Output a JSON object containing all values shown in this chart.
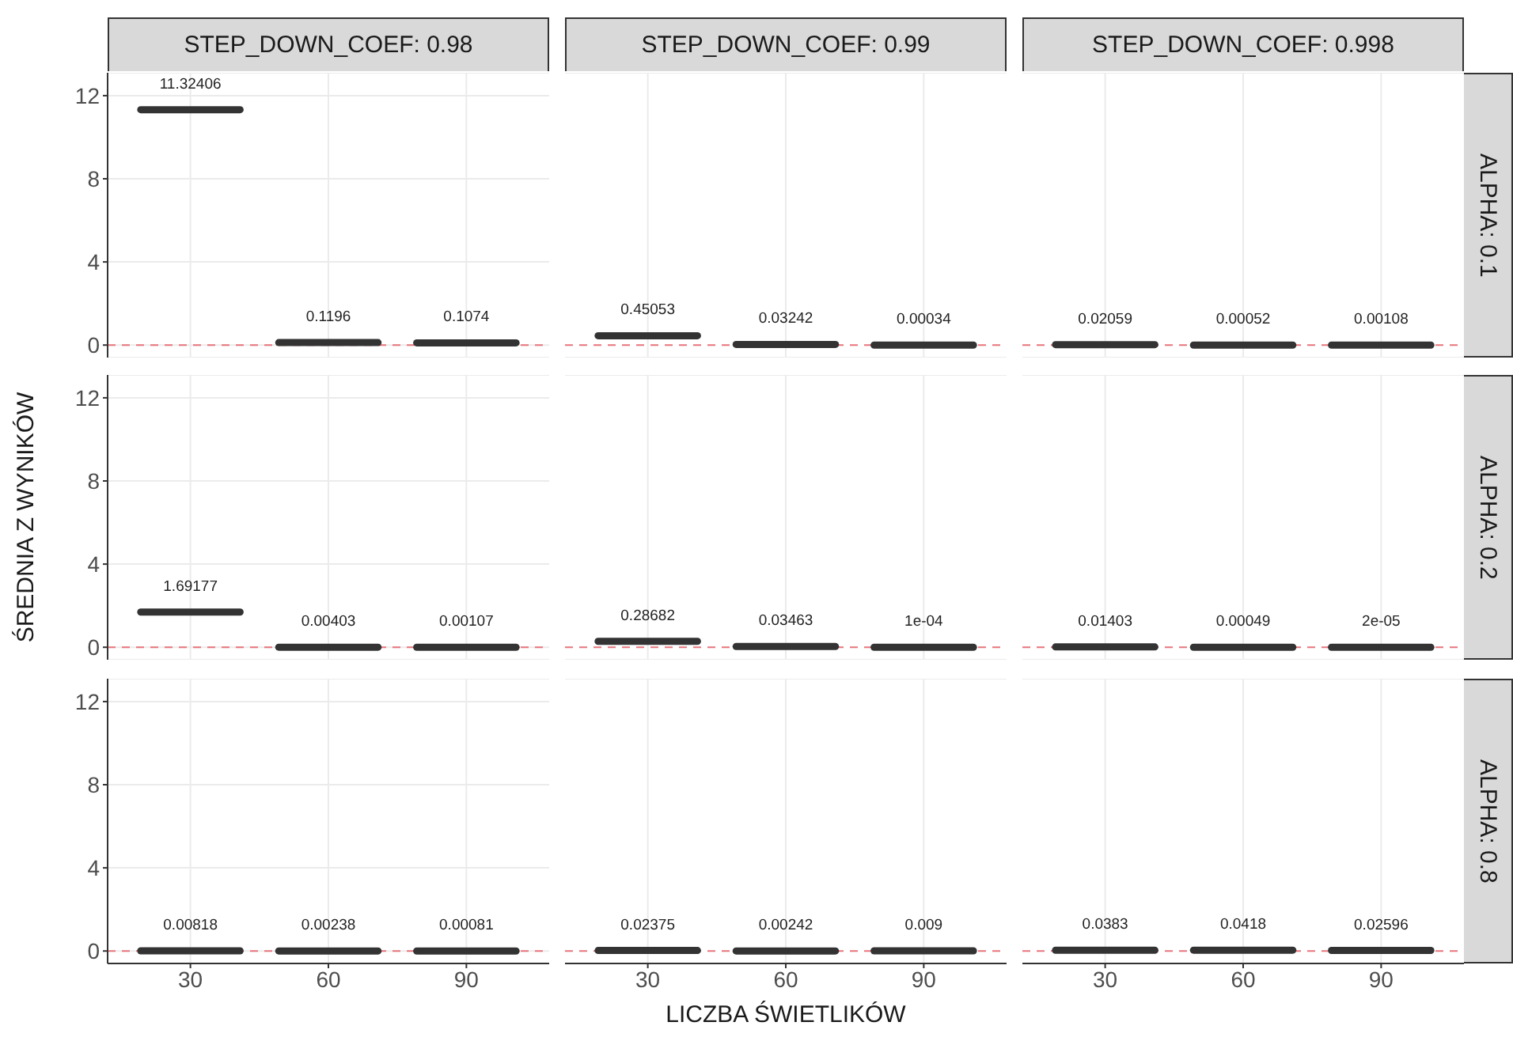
{
  "chart_data": [
    {
      "type": "box",
      "title": "STEP_DOWN_COEF: 0.98",
      "categories": [
        "30",
        "60",
        "90"
      ],
      "series": [
        {
          "color": "#333333",
          "boxes": [
            {
              "low": 11.32406,
              "q1": 11.32406,
              "median": 11.32406,
              "q3": 11.32406,
              "high": 11.32406
            },
            {
              "low": 0.1196,
              "q1": 0.1196,
              "median": 0.1196,
              "q3": 0.1196,
              "high": 0.1196
            },
            {
              "low": 0.1074,
              "q1": 0.1074,
              "median": 0.1074,
              "q3": 0.1074,
              "high": 0.1074
            }
          ],
          "value_labels": [
            "11.32406",
            "0.1196",
            "0.1074"
          ]
        }
      ],
      "ylim": [
        -0.6,
        13.1
      ],
      "yticks": [
        0,
        4,
        8,
        12
      ],
      "grid": true,
      "tick_labels": "y",
      "ref_lines": [
        {
          "axis": "y",
          "value": 0,
          "color": "#e8747c",
          "line_style": "dashed"
        }
      ]
    },
    {
      "type": "box",
      "title": "STEP_DOWN_COEF: 0.99",
      "categories": [
        "30",
        "60",
        "90"
      ],
      "series": [
        {
          "color": "#333333",
          "boxes": [
            {
              "low": 0.45053,
              "q1": 0.45053,
              "median": 0.45053,
              "q3": 0.45053,
              "high": 0.45053
            },
            {
              "low": 0.03242,
              "q1": 0.03242,
              "median": 0.03242,
              "q3": 0.03242,
              "high": 0.03242
            },
            {
              "low": 0.00034,
              "q1": 0.00034,
              "median": 0.00034,
              "q3": 0.00034,
              "high": 0.00034
            }
          ],
          "value_labels": [
            "0.45053",
            "0.03242",
            "0.00034"
          ]
        }
      ],
      "ylim": [
        -0.6,
        13.1
      ],
      "yticks": [
        0,
        4,
        8,
        12
      ],
      "grid": true,
      "tick_labels": false,
      "ref_lines": [
        {
          "axis": "y",
          "value": 0,
          "color": "#e8747c",
          "line_style": "dashed"
        }
      ]
    },
    {
      "type": "box",
      "title": "STEP_DOWN_COEF: 0.998",
      "y2label": "ALPHA: 0.1",
      "categories": [
        "30",
        "60",
        "90"
      ],
      "series": [
        {
          "color": "#333333",
          "boxes": [
            {
              "low": 0.02059,
              "q1": 0.02059,
              "median": 0.02059,
              "q3": 0.02059,
              "high": 0.02059
            },
            {
              "low": 0.00052,
              "q1": 0.00052,
              "median": 0.00052,
              "q3": 0.00052,
              "high": 0.00052
            },
            {
              "low": 0.00108,
              "q1": 0.00108,
              "median": 0.00108,
              "q3": 0.00108,
              "high": 0.00108
            }
          ],
          "value_labels": [
            "0.02059",
            "0.00052",
            "0.00108"
          ]
        }
      ],
      "ylim": [
        -0.6,
        13.1
      ],
      "yticks": [
        0,
        4,
        8,
        12
      ],
      "grid": true,
      "tick_labels": false,
      "ref_lines": [
        {
          "axis": "y",
          "value": 0,
          "color": "#e8747c",
          "line_style": "dashed"
        }
      ]
    },
    {
      "type": "box",
      "ylabel": "ŚREDNIA Z WYNIKÓW",
      "categories": [
        "30",
        "60",
        "90"
      ],
      "series": [
        {
          "color": "#333333",
          "boxes": [
            {
              "low": 1.69177,
              "q1": 1.69177,
              "median": 1.69177,
              "q3": 1.69177,
              "high": 1.69177
            },
            {
              "low": 0.00403,
              "q1": 0.00403,
              "median": 0.00403,
              "q3": 0.00403,
              "high": 0.00403
            },
            {
              "low": 0.00107,
              "q1": 0.00107,
              "median": 0.00107,
              "q3": 0.00107,
              "high": 0.00107
            }
          ],
          "value_labels": [
            "1.69177",
            "0.00403",
            "0.00107"
          ]
        }
      ],
      "ylim": [
        -0.6,
        13.1
      ],
      "yticks": [
        0,
        4,
        8,
        12
      ],
      "grid": true,
      "tick_labels": "y",
      "ref_lines": [
        {
          "axis": "y",
          "value": 0,
          "color": "#e8747c",
          "line_style": "dashed"
        }
      ]
    },
    {
      "type": "box",
      "categories": [
        "30",
        "60",
        "90"
      ],
      "series": [
        {
          "color": "#333333",
          "boxes": [
            {
              "low": 0.28682,
              "q1": 0.28682,
              "median": 0.28682,
              "q3": 0.28682,
              "high": 0.28682
            },
            {
              "low": 0.03463,
              "q1": 0.03463,
              "median": 0.03463,
              "q3": 0.03463,
              "high": 0.03463
            },
            {
              "low": 0.0001,
              "q1": 0.0001,
              "median": 0.0001,
              "q3": 0.0001,
              "high": 0.0001
            }
          ],
          "value_labels": [
            "0.28682",
            "0.03463",
            "1e-04"
          ]
        }
      ],
      "ylim": [
        -0.6,
        13.1
      ],
      "yticks": [
        0,
        4,
        8,
        12
      ],
      "grid": true,
      "tick_labels": false,
      "ref_lines": [
        {
          "axis": "y",
          "value": 0,
          "color": "#e8747c",
          "line_style": "dashed"
        }
      ]
    },
    {
      "type": "box",
      "y2label": "ALPHA: 0.2",
      "categories": [
        "30",
        "60",
        "90"
      ],
      "series": [
        {
          "color": "#333333",
          "boxes": [
            {
              "low": 0.01403,
              "q1": 0.01403,
              "median": 0.01403,
              "q3": 0.01403,
              "high": 0.01403
            },
            {
              "low": 0.00049,
              "q1": 0.00049,
              "median": 0.00049,
              "q3": 0.00049,
              "high": 0.00049
            },
            {
              "low": 2e-05,
              "q1": 2e-05,
              "median": 2e-05,
              "q3": 2e-05,
              "high": 2e-05
            }
          ],
          "value_labels": [
            "0.01403",
            "0.00049",
            "2e-05"
          ]
        }
      ],
      "ylim": [
        -0.6,
        13.1
      ],
      "yticks": [
        0,
        4,
        8,
        12
      ],
      "grid": true,
      "tick_labels": false,
      "ref_lines": [
        {
          "axis": "y",
          "value": 0,
          "color": "#e8747c",
          "line_style": "dashed"
        }
      ]
    },
    {
      "type": "box",
      "categories": [
        "30",
        "60",
        "90"
      ],
      "series": [
        {
          "color": "#333333",
          "boxes": [
            {
              "low": 0.00818,
              "q1": 0.00818,
              "median": 0.00818,
              "q3": 0.00818,
              "high": 0.00818
            },
            {
              "low": 0.00238,
              "q1": 0.00238,
              "median": 0.00238,
              "q3": 0.00238,
              "high": 0.00238
            },
            {
              "low": 0.00081,
              "q1": 0.00081,
              "median": 0.00081,
              "q3": 0.00081,
              "high": 0.00081
            }
          ],
          "value_labels": [
            "0.00818",
            "0.00238",
            "0.00081"
          ]
        }
      ],
      "ylim": [
        -0.6,
        13.1
      ],
      "yticks": [
        0,
        4,
        8,
        12
      ],
      "grid": true,
      "ref_lines": [
        {
          "axis": "y",
          "value": 0,
          "color": "#e8747c",
          "line_style": "dashed"
        }
      ]
    },
    {
      "type": "box",
      "xlabel": "LICZBA ŚWIETLIKÓW",
      "categories": [
        "30",
        "60",
        "90"
      ],
      "series": [
        {
          "color": "#333333",
          "boxes": [
            {
              "low": 0.02375,
              "q1": 0.02375,
              "median": 0.02375,
              "q3": 0.02375,
              "high": 0.02375
            },
            {
              "low": 0.00242,
              "q1": 0.00242,
              "median": 0.00242,
              "q3": 0.00242,
              "high": 0.00242
            },
            {
              "low": 0.009,
              "q1": 0.009,
              "median": 0.009,
              "q3": 0.009,
              "high": 0.009
            }
          ],
          "value_labels": [
            "0.02375",
            "0.00242",
            "0.009"
          ]
        }
      ],
      "ylim": [
        -0.6,
        13.1
      ],
      "yticks": [
        0,
        4,
        8,
        12
      ],
      "grid": true,
      "tick_labels": "x",
      "ref_lines": [
        {
          "axis": "y",
          "value": 0,
          "color": "#e8747c",
          "line_style": "dashed"
        }
      ]
    },
    {
      "type": "box",
      "y2label": "ALPHA: 0.8",
      "categories": [
        "30",
        "60",
        "90"
      ],
      "series": [
        {
          "color": "#333333",
          "boxes": [
            {
              "low": 0.0383,
              "q1": 0.0383,
              "median": 0.0383,
              "q3": 0.0383,
              "high": 0.0383
            },
            {
              "low": 0.0418,
              "q1": 0.0418,
              "median": 0.0418,
              "q3": 0.0418,
              "high": 0.0418
            },
            {
              "low": 0.02596,
              "q1": 0.02596,
              "median": 0.02596,
              "q3": 0.02596,
              "high": 0.02596
            }
          ],
          "value_labels": [
            "0.0383",
            "0.0418",
            "0.02596"
          ]
        }
      ],
      "ylim": [
        -0.6,
        13.1
      ],
      "yticks": [
        0,
        4,
        8,
        12
      ],
      "grid": true,
      "tick_labels": "x",
      "ref_lines": [
        {
          "axis": "y",
          "value": 0,
          "color": "#e8747c",
          "line_style": "dashed"
        }
      ]
    }
  ]
}
